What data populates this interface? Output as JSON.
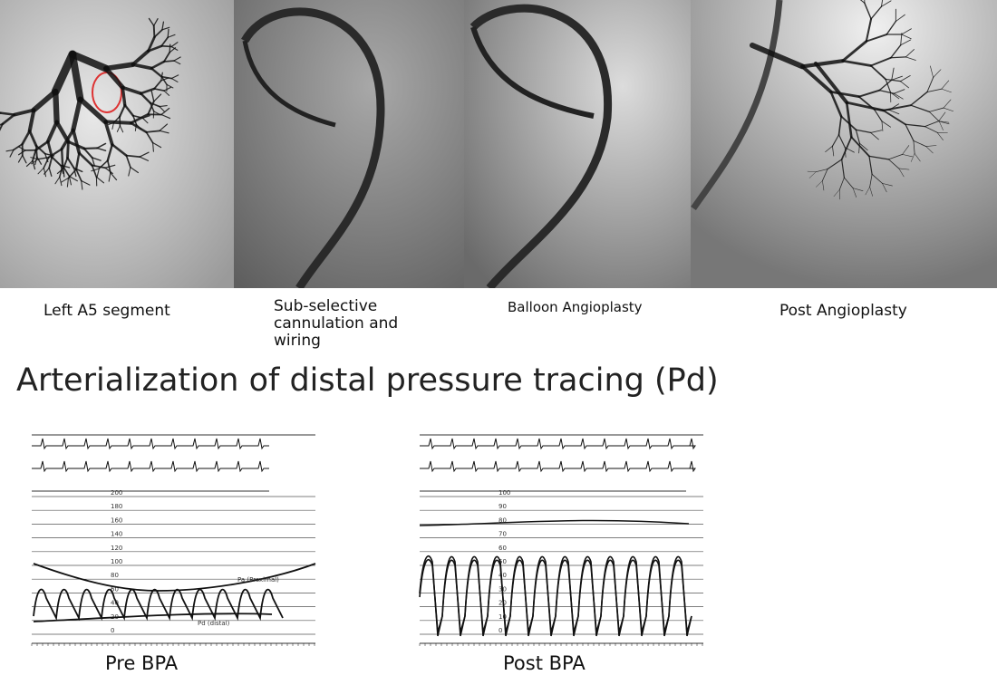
{
  "panels": [
    {
      "caption": "Left A5 segment"
    },
    {
      "caption": "Sub-selective cannulation and wiring"
    },
    {
      "caption": "Balloon Angioplasty"
    },
    {
      "caption": "Post Angioplasty"
    }
  ],
  "title": "Arterialization of distal pressure tracing (Pd)",
  "tracings": [
    {
      "label": "Pre BPA",
      "scale": [
        200,
        180,
        160,
        140,
        120,
        100,
        80,
        60,
        40,
        20,
        0
      ],
      "annotations": [
        "Pa (Proximal)",
        "Pd (distal)"
      ]
    },
    {
      "label": "Post BPA",
      "scale": [
        100,
        90,
        80,
        70,
        60,
        50,
        40,
        30,
        20,
        10,
        0
      ]
    }
  ]
}
